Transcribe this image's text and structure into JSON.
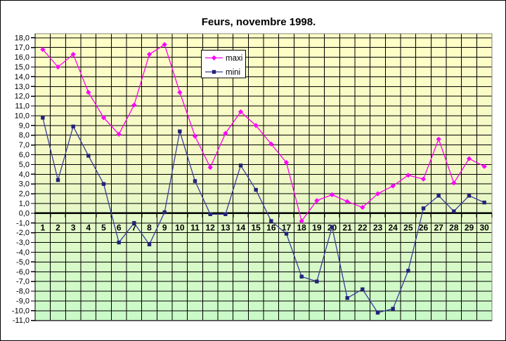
{
  "window": {
    "background": "#FFFFFF",
    "frame_border_color": "#000000"
  },
  "chart_data": {
    "type": "line",
    "title": "Feurs, novembre 1998.",
    "xlabel": "",
    "ylabel": "",
    "x_tick_labels": [
      "1",
      "2",
      "3",
      "4",
      "5",
      "6",
      "7",
      "8",
      "9",
      "10",
      "11",
      "12",
      "13",
      "14",
      "15",
      "16",
      "17",
      "18",
      "19",
      "20",
      "21",
      "22",
      "23",
      "24",
      "25",
      "26",
      "27",
      "28",
      "29",
      "30"
    ],
    "y_tick_labels": [
      "18,0",
      "17,0",
      "16,0",
      "15,0",
      "14,0",
      "13,0",
      "12,0",
      "11,0",
      "10,0",
      "9,0",
      "8,0",
      "7,0",
      "6,0",
      "5,0",
      "4,0",
      "3,0",
      "2,0",
      "1,0",
      "0,0",
      "-1,0",
      "-2,0",
      "-3,0",
      "-4,0",
      "-5,0",
      "-6,0",
      "-7,0",
      "-8,0",
      "-9,0",
      "-10,0",
      "-11,0"
    ],
    "y_axis": {
      "min": -11,
      "max": 18,
      "step": 1,
      "decimal_separator": ","
    },
    "x": [
      1,
      2,
      3,
      4,
      5,
      6,
      7,
      8,
      9,
      10,
      11,
      12,
      13,
      14,
      15,
      16,
      17,
      18,
      19,
      20,
      21,
      22,
      23,
      24,
      25,
      26,
      27,
      28,
      29,
      30
    ],
    "series": [
      {
        "name": "maxi",
        "color": "#FF00EE",
        "marker": "diamond",
        "marker_color": "#FF00FF",
        "values": [
          16.8,
          15.0,
          16.3,
          12.4,
          9.8,
          8.1,
          11.1,
          16.3,
          17.3,
          12.4,
          7.9,
          4.7,
          8.2,
          10.4,
          9.0,
          7.1,
          5.2,
          -0.8,
          1.3,
          1.9,
          1.2,
          0.6,
          2.0,
          2.8,
          3.9,
          3.5,
          7.6,
          3.1,
          5.6,
          4.8
        ]
      },
      {
        "name": "mini",
        "color": "#3B3B9C",
        "marker": "square",
        "marker_color": "#232378",
        "values": [
          9.8,
          3.4,
          8.9,
          5.9,
          3.0,
          -3.0,
          -1.0,
          -3.2,
          0.1,
          8.4,
          3.3,
          -0.1,
          -0.1,
          4.9,
          2.4,
          -0.8,
          -2.1,
          -6.5,
          -7.0,
          -1.4,
          -8.7,
          -7.8,
          -10.2,
          -9.8,
          -5.9,
          0.5,
          1.8,
          0.2,
          1.8,
          1.1
        ]
      }
    ],
    "legend": {
      "position": "top-center",
      "entries": [
        "maxi",
        "mini"
      ]
    },
    "plot_background": {
      "top_color": "#FFFFC6",
      "bottom_color": "#C8FAC8"
    },
    "gridlines": "both",
    "gridline_color": "#000000",
    "zero_line": "thick-black"
  }
}
